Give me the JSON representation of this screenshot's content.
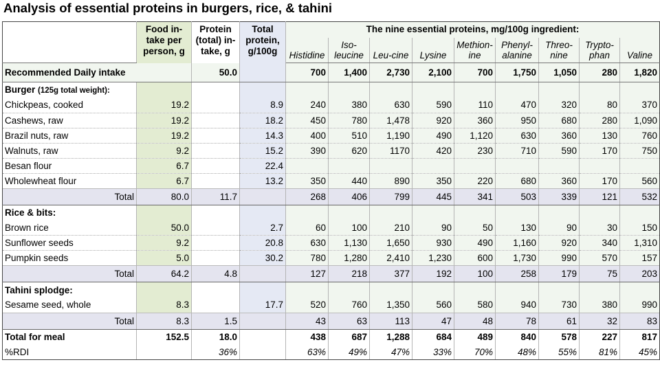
{
  "title": "Analysis of essential proteins in burgers, rice, & tahini",
  "headers": {
    "food_intake": "Food in-take per person, g",
    "protein_intake": "Protein (total) in-take, g",
    "total_protein": "Total protein, g/100g",
    "essential_span": "The nine essential proteins, mg/100g ingredient:",
    "aminos": [
      "Histidine",
      "Iso-leucine",
      "Leu-cine",
      "Lysine",
      "Methion-ine",
      "Phenyl-alanine",
      "Threo-nine",
      "Trypto-phan",
      "Valine"
    ]
  },
  "rdi": {
    "label": "Recommended Daily  intake",
    "protein": "50.0",
    "values": [
      "700",
      "1,400",
      "2,730",
      "2,100",
      "700",
      "1,750",
      "1,050",
      "280",
      "1,820"
    ]
  },
  "sections": [
    {
      "name": "Burger",
      "note": "(125g total weight):",
      "rows": [
        {
          "name": "Chickpeas, cooked",
          "intake": "19.2",
          "total_protein": "8.9",
          "values": [
            "240",
            "380",
            "630",
            "590",
            "110",
            "470",
            "320",
            "80",
            "370"
          ]
        },
        {
          "name": "Cashews, raw",
          "intake": "19.2",
          "total_protein": "18.2",
          "values": [
            "450",
            "780",
            "1,478",
            "920",
            "360",
            "950",
            "680",
            "280",
            "1,090"
          ]
        },
        {
          "name": "Brazil nuts, raw",
          "intake": "19.2",
          "total_protein": "14.3",
          "values": [
            "400",
            "510",
            "1,190",
            "490",
            "1,120",
            "630",
            "360",
            "130",
            "760"
          ]
        },
        {
          "name": "Walnuts, raw",
          "intake": "9.2",
          "total_protein": "15.2",
          "values": [
            "390",
            "620",
            "1170",
            "420",
            "230",
            "710",
            "590",
            "170",
            "750"
          ]
        },
        {
          "name": "Besan flour",
          "intake": "6.7",
          "total_protein": "22.4",
          "values": [
            "",
            "",
            "",
            "",
            "",
            "",
            "",
            "",
            ""
          ]
        },
        {
          "name": "Wholewheat flour",
          "intake": "6.7",
          "total_protein": "13.2",
          "values": [
            "350",
            "440",
            "890",
            "350",
            "220",
            "680",
            "360",
            "170",
            "560"
          ]
        }
      ],
      "total": {
        "label": "Total",
        "intake": "80.0",
        "protein": "11.7",
        "values": [
          "268",
          "406",
          "799",
          "445",
          "341",
          "503",
          "339",
          "121",
          "532"
        ]
      }
    },
    {
      "name": "Rice & bits:",
      "note": "",
      "rows": [
        {
          "name": "Brown rice",
          "intake": "50.0",
          "total_protein": "2.7",
          "values": [
            "60",
            "100",
            "210",
            "90",
            "50",
            "130",
            "90",
            "30",
            "150"
          ]
        },
        {
          "name": "Sunflower seeds",
          "intake": "9.2",
          "total_protein": "20.8",
          "values": [
            "630",
            "1,130",
            "1,650",
            "930",
            "490",
            "1,160",
            "920",
            "340",
            "1,310"
          ]
        },
        {
          "name": "Pumpkin seeds",
          "intake": "5.0",
          "total_protein": "30.2",
          "values": [
            "780",
            "1,280",
            "2,410",
            "1,230",
            "600",
            "1,730",
            "990",
            "570",
            "157"
          ]
        }
      ],
      "total": {
        "label": "Total",
        "intake": "64.2",
        "protein": "4.8",
        "values": [
          "127",
          "218",
          "377",
          "192",
          "100",
          "258",
          "179",
          "75",
          "203"
        ]
      }
    },
    {
      "name": "Tahini splodge:",
      "note": "",
      "rows": [
        {
          "name": "Sesame seed, whole",
          "intake": "8.3",
          "total_protein": "17.7",
          "values": [
            "520",
            "760",
            "1,350",
            "560",
            "580",
            "940",
            "730",
            "380",
            "990"
          ]
        }
      ],
      "total": {
        "label": "Total",
        "intake": "8.3",
        "protein": "1.5",
        "values": [
          "43",
          "63",
          "113",
          "47",
          "48",
          "78",
          "61",
          "32",
          "83"
        ]
      }
    }
  ],
  "meal": {
    "label": "Total for meal",
    "intake": "152.5",
    "protein": "18.0",
    "values": [
      "438",
      "687",
      "1,288",
      "684",
      "489",
      "840",
      "578",
      "227",
      "817"
    ]
  },
  "pct": {
    "label": "%RDI",
    "protein": "36%",
    "values": [
      "63%",
      "49%",
      "47%",
      "33%",
      "70%",
      "48%",
      "55%",
      "81%",
      "45%"
    ]
  },
  "colors": {
    "food_intake_column": "#e3ecd2",
    "total_protein_column": "#e5e9f4",
    "total_rows": "#e4e4ef",
    "amino_area": "#f1f6ef"
  }
}
